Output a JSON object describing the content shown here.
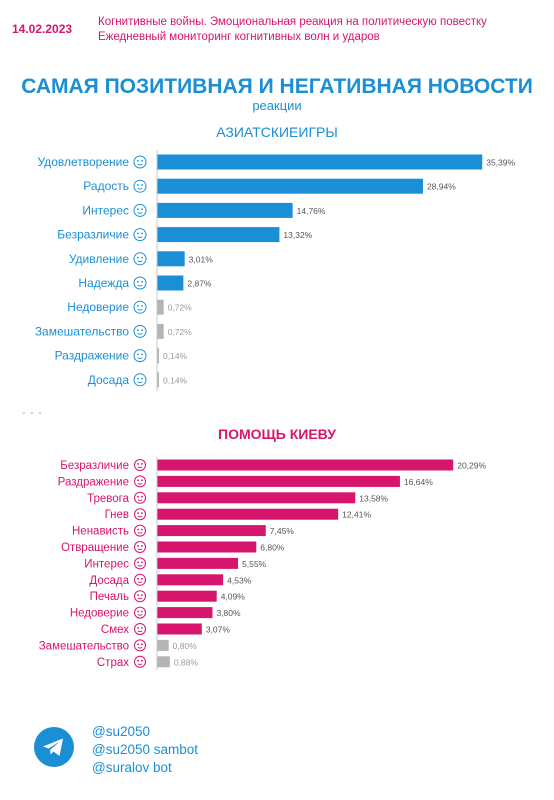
{
  "header": {
    "date": "14.02.2023",
    "line1": "Когнитивные войны. Эмоциональная реакция на политическую повестку",
    "line2": "Ежедневный мониторинг когнитивных волн и ударов"
  },
  "title": "САМАЯ ПОЗИТИВНАЯ И НЕГАТИВНАЯ НОВОСТИ",
  "subtitle": "реакции",
  "separator": "- - -",
  "colors": {
    "blue": "#1a8fd6",
    "pink": "#d6156c",
    "gray": "#b4b4b4"
  },
  "chart_data": [
    {
      "type": "bar",
      "orientation": "horizontal",
      "title": "АЗИАТСКИЕИГРЫ",
      "bar_color": "#1a8fd6",
      "gray_color": "#b4b4b4",
      "categories": [
        "Удовлетворение",
        "Радость",
        "Интерес",
        "Безразличие",
        "Удивление",
        "Надежда",
        "Недоверие",
        "Замешательство",
        "Раздражение",
        "Досада"
      ],
      "icons": [
        "satisfied-face-icon",
        "joy-face-icon",
        "interest-icon",
        "indifferent-face-icon",
        "surprised-face-icon",
        "hope-icon",
        "distrust-face-icon",
        "confused-face-icon",
        "irritated-face-icon",
        "annoyed-face-icon"
      ],
      "values": [
        35.39,
        28.94,
        14.76,
        13.32,
        3.01,
        2.87,
        0.72,
        0.72,
        0.14,
        0.14
      ],
      "value_labels": [
        "35,39%",
        "28,94%",
        "14,76%",
        "13,32%",
        "3,01%",
        "2,87%",
        "0,72%",
        "0,72%",
        "0,14%",
        "0,14%"
      ],
      "gray": [
        false,
        false,
        false,
        false,
        false,
        false,
        true,
        true,
        true,
        true
      ]
    },
    {
      "type": "bar",
      "orientation": "horizontal",
      "title": "ПОМОЩЬ КИЕВУ",
      "bar_color": "#d6156c",
      "gray_color": "#b4b4b4",
      "categories": [
        "Безразличие",
        "Раздражение",
        "Тревога",
        "Гнев",
        "Ненависть",
        "Отвращение",
        "Интерес",
        "Досада",
        "Печаль",
        "Недоверие",
        "Смех",
        "Замешательство",
        "Страх"
      ],
      "icons": [
        "indifferent-face-icon",
        "irritated-face-icon",
        "anxious-face-icon",
        "angry-face-icon",
        "hatred-face-icon",
        "disgust-face-icon",
        "interest-icon",
        "annoyed-face-icon",
        "sad-face-icon",
        "distrust-face-icon",
        "laughing-face-icon",
        "confused-face-icon",
        "fear-face-icon"
      ],
      "values": [
        20.29,
        16.64,
        13.58,
        12.41,
        7.45,
        6.8,
        5.55,
        4.53,
        4.09,
        3.8,
        3.07,
        0.8,
        0.88
      ],
      "value_labels": [
        "20,29%",
        "16,64%",
        "13,58%",
        "12,41%",
        "7,45%",
        "6,80%",
        "5,55%",
        "4,53%",
        "4,09%",
        "3,80%",
        "3,07%",
        "0,80%",
        "0,88%"
      ],
      "gray": [
        false,
        false,
        false,
        false,
        false,
        false,
        false,
        false,
        false,
        false,
        false,
        true,
        true
      ]
    }
  ],
  "footer": {
    "icon": "telegram-icon",
    "handles": [
      "@su2050",
      "@su2050 sambot",
      "@suralov bot"
    ]
  }
}
